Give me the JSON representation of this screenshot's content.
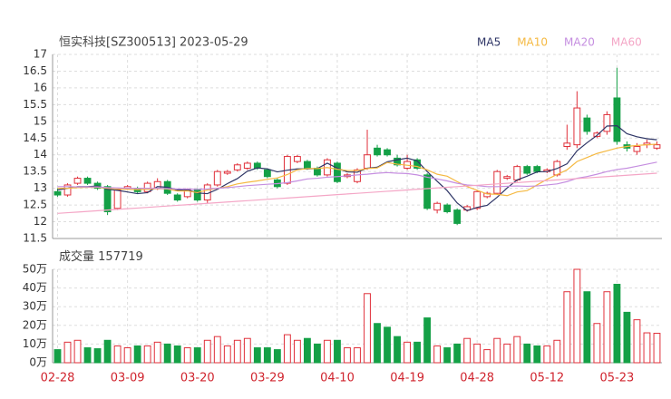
{
  "chart_data": [
    {
      "type": "candlestick",
      "title": "恒实科技[SZ300513] 2023-05-29",
      "categories": [
        "02-28",
        null,
        null,
        null,
        null,
        null,
        null,
        "03-09",
        null,
        null,
        null,
        null,
        null,
        null,
        "03-20",
        null,
        null,
        null,
        null,
        null,
        null,
        "03-29",
        null,
        null,
        null,
        null,
        null,
        null,
        "04-10",
        null,
        null,
        null,
        null,
        null,
        null,
        "04-19",
        null,
        null,
        null,
        null,
        null,
        null,
        "04-28",
        null,
        null,
        null,
        null,
        null,
        null,
        "05-12",
        null,
        null,
        null,
        null,
        null,
        null,
        "05-23",
        null,
        null,
        null,
        null
      ],
      "open": [
        12.9,
        12.8,
        13.15,
        13.3,
        13.15,
        13.05,
        12.4,
        13.0,
        13.0,
        12.9,
        13.0,
        13.2,
        12.8,
        12.75,
        12.95,
        12.65,
        13.1,
        13.45,
        13.55,
        13.6,
        13.75,
        13.55,
        13.25,
        13.15,
        13.8,
        13.8,
        13.6,
        13.4,
        13.75,
        13.35,
        13.2,
        13.6,
        14.2,
        14.15,
        13.9,
        13.6,
        13.85,
        13.4,
        12.35,
        12.5,
        12.35,
        12.35,
        12.4,
        12.75,
        12.85,
        13.3,
        13.25,
        13.65,
        13.65,
        13.5,
        13.4,
        14.25,
        14.3,
        15.1,
        14.55,
        14.7,
        15.7,
        14.3,
        14.1,
        14.3,
        14.2
      ],
      "high": [
        13.0,
        13.15,
        13.35,
        13.35,
        13.2,
        13.1,
        12.95,
        13.1,
        13.05,
        13.2,
        13.3,
        13.25,
        12.85,
        13.0,
        13.0,
        13.15,
        13.55,
        13.55,
        13.75,
        13.8,
        13.8,
        13.6,
        13.3,
        14.0,
        14.0,
        13.85,
        13.65,
        13.9,
        13.8,
        13.45,
        13.6,
        14.75,
        14.3,
        14.2,
        14.0,
        14.0,
        13.9,
        13.45,
        12.6,
        12.55,
        12.4,
        12.5,
        12.95,
        12.9,
        13.55,
        13.4,
        13.7,
        13.7,
        13.7,
        13.6,
        13.85,
        14.9,
        15.9,
        15.2,
        14.7,
        15.3,
        16.6,
        14.4,
        14.35,
        14.45,
        14.4
      ],
      "low": [
        12.75,
        12.75,
        13.1,
        13.1,
        12.95,
        12.2,
        12.35,
        12.95,
        12.85,
        12.85,
        12.95,
        12.8,
        12.6,
        12.7,
        12.6,
        12.55,
        13.05,
        13.4,
        13.5,
        13.55,
        13.55,
        13.3,
        13.0,
        13.1,
        13.75,
        13.55,
        13.35,
        13.35,
        13.15,
        13.3,
        13.15,
        13.55,
        13.95,
        13.95,
        13.65,
        13.55,
        13.55,
        12.35,
        12.25,
        12.25,
        11.9,
        12.3,
        12.35,
        12.7,
        12.8,
        13.25,
        13.2,
        13.4,
        13.45,
        13.45,
        13.35,
        14.15,
        14.2,
        14.6,
        14.5,
        14.6,
        14.3,
        14.1,
        14.0,
        14.2,
        14.15
      ],
      "close": [
        12.8,
        13.1,
        13.3,
        13.15,
        13.0,
        12.3,
        12.95,
        13.05,
        12.9,
        13.15,
        13.2,
        12.85,
        12.65,
        12.95,
        12.65,
        13.1,
        13.5,
        13.5,
        13.7,
        13.75,
        13.6,
        13.35,
        13.05,
        13.95,
        13.95,
        13.6,
        13.4,
        13.85,
        13.2,
        13.4,
        13.55,
        14.0,
        14.0,
        14.0,
        13.7,
        13.8,
        13.6,
        12.4,
        12.55,
        12.3,
        11.95,
        12.45,
        12.9,
        12.85,
        13.5,
        13.35,
        13.65,
        13.45,
        13.5,
        13.55,
        13.8,
        14.35,
        15.4,
        14.7,
        14.65,
        15.2,
        14.4,
        14.2,
        14.25,
        14.35,
        14.3
      ],
      "up_color": "#e0303a",
      "down_color": "#14a046",
      "series": [
        {
          "name": "MA5",
          "color": "#2e3566",
          "values": [
            12.95,
            13.0,
            13.05,
            13.05,
            13.07,
            12.97,
            12.94,
            12.89,
            12.84,
            12.87,
            13.05,
            13.03,
            12.95,
            12.96,
            12.86,
            12.84,
            12.97,
            13.14,
            13.29,
            13.51,
            13.61,
            13.58,
            13.49,
            13.54,
            13.58,
            13.58,
            13.59,
            13.75,
            13.6,
            13.49,
            13.48,
            13.6,
            13.63,
            13.79,
            13.85,
            13.9,
            13.82,
            13.5,
            13.21,
            12.93,
            12.56,
            12.33,
            12.43,
            12.49,
            12.73,
            13.01,
            13.25,
            13.36,
            13.49,
            13.5,
            13.59,
            13.73,
            14.12,
            14.36,
            14.58,
            14.86,
            14.87,
            14.63,
            14.54,
            14.48,
            14.45
          ]
        },
        {
          "name": "MA10",
          "color": "#f5b942",
          "values": [
            13.0,
            13.0,
            13.02,
            13.03,
            13.03,
            13.0,
            12.98,
            12.97,
            12.96,
            12.97,
            12.99,
            12.98,
            12.92,
            12.92,
            12.87,
            12.95,
            13.0,
            13.05,
            13.13,
            13.18,
            13.22,
            13.27,
            13.31,
            13.41,
            13.55,
            13.59,
            13.59,
            13.62,
            13.57,
            13.53,
            13.53,
            13.59,
            13.61,
            13.77,
            13.72,
            13.69,
            13.65,
            13.55,
            13.42,
            13.36,
            13.2,
            13.05,
            12.94,
            12.83,
            12.82,
            12.78,
            12.89,
            12.93,
            13.1,
            13.27,
            13.41,
            13.55,
            13.8,
            13.92,
            14.04,
            14.12,
            14.2,
            14.25,
            14.28,
            14.3,
            14.32
          ]
        },
        {
          "name": "MA20",
          "color": "#c58ee0",
          "values": [
            13.05,
            13.05,
            13.04,
            13.04,
            13.04,
            13.02,
            13.01,
            13.0,
            13.0,
            13.0,
            13.0,
            12.99,
            12.98,
            12.98,
            12.97,
            12.98,
            13.0,
            13.02,
            13.05,
            13.08,
            13.1,
            13.12,
            13.14,
            13.17,
            13.22,
            13.28,
            13.3,
            13.33,
            13.35,
            13.37,
            13.4,
            13.42,
            13.45,
            13.47,
            13.45,
            13.44,
            13.4,
            13.33,
            13.28,
            13.22,
            13.15,
            13.1,
            13.08,
            13.05,
            13.05,
            13.06,
            13.07,
            13.06,
            13.07,
            13.1,
            13.13,
            13.2,
            13.3,
            13.35,
            13.42,
            13.5,
            13.56,
            13.6,
            13.66,
            13.72,
            13.78
          ]
        },
        {
          "name": "MA60",
          "color": "#f4a6c6",
          "values": [
            12.25,
            12.27,
            12.29,
            12.31,
            12.33,
            12.35,
            12.37,
            12.39,
            12.41,
            12.43,
            12.45,
            12.47,
            12.49,
            12.51,
            12.53,
            12.55,
            12.57,
            12.59,
            12.61,
            12.63,
            12.65,
            12.67,
            12.69,
            12.71,
            12.73,
            12.75,
            12.77,
            12.79,
            12.81,
            12.83,
            12.85,
            12.87,
            12.89,
            12.91,
            12.93,
            12.95,
            12.97,
            12.99,
            13.01,
            13.03,
            13.05,
            13.07,
            13.09,
            13.11,
            13.13,
            13.15,
            13.17,
            13.19,
            13.21,
            13.23,
            13.25,
            13.27,
            13.29,
            13.31,
            13.33,
            13.35,
            13.37,
            13.39,
            13.41,
            13.43,
            13.45
          ]
        }
      ],
      "ylim": [
        11.5,
        17
      ],
      "yticks": [
        11.5,
        12,
        12.5,
        13,
        13.5,
        14,
        14.5,
        15,
        15.5,
        16,
        16.5,
        17
      ],
      "grid": true
    },
    {
      "type": "bar",
      "title": "成交量",
      "latest": 157719,
      "values": [
        70000,
        110000,
        120000,
        80000,
        75000,
        120000,
        90000,
        80000,
        90000,
        90000,
        110000,
        100000,
        90000,
        80000,
        80000,
        120000,
        140000,
        90000,
        120000,
        130000,
        80000,
        80000,
        70000,
        150000,
        120000,
        130000,
        100000,
        120000,
        120000,
        80000,
        80000,
        370000,
        210000,
        190000,
        140000,
        110000,
        110000,
        240000,
        90000,
        80000,
        100000,
        130000,
        100000,
        70000,
        130000,
        100000,
        140000,
        100000,
        90000,
        90000,
        120000,
        380000,
        500000,
        380000,
        210000,
        380000,
        420000,
        270000,
        230000,
        160000,
        157719
      ],
      "ylim": [
        0,
        500000
      ],
      "yticks": [
        {
          "value": 0,
          "label": "0万"
        },
        {
          "value": 100000,
          "label": "10万"
        },
        {
          "value": 200000,
          "label": "20万"
        },
        {
          "value": 300000,
          "label": "30万"
        },
        {
          "value": 400000,
          "label": "40万"
        },
        {
          "value": 500000,
          "label": "50万"
        }
      ],
      "grid": true
    }
  ]
}
